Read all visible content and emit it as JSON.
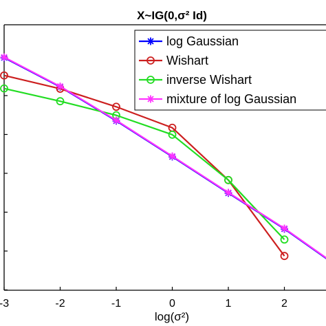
{
  "chart_data": {
    "type": "line",
    "title": "X~IG(0,σ² Id)",
    "xlabel": "log(σ²)",
    "ylabel": "",
    "xlim": [
      -3,
      3
    ],
    "ylim": [
      0,
      1
    ],
    "x_ticks": [
      "-3",
      "-2",
      "-1",
      "0",
      "1",
      "2"
    ],
    "grid": false,
    "legend_position": "top-right",
    "series": [
      {
        "name": "log Gaussian",
        "color": "#0000ff",
        "marker": "asterisk",
        "x": [
          -3,
          -2,
          -1,
          0,
          1,
          2,
          3
        ],
        "y": [
          0.876,
          0.766,
          0.638,
          0.503,
          0.366,
          0.231,
          0.082
        ]
      },
      {
        "name": "Wishart",
        "color": "#cc1f1f",
        "marker": "circle",
        "x": [
          -3,
          -2,
          -1,
          0,
          1,
          2
        ],
        "y": [
          0.809,
          0.759,
          0.691,
          0.612,
          0.415,
          0.129
        ]
      },
      {
        "name": "inverse Wishart",
        "color": "#22dd22",
        "marker": "circle",
        "x": [
          -3,
          -2,
          -1,
          0,
          1,
          2
        ],
        "y": [
          0.76,
          0.712,
          0.659,
          0.586,
          0.415,
          0.191
        ]
      },
      {
        "name": "mixture of log Gaussian",
        "color": "#ff33ff",
        "marker": "asterisk",
        "x": [
          -3,
          -2,
          -1,
          0,
          1,
          2,
          3
        ],
        "y": [
          0.878,
          0.768,
          0.64,
          0.505,
          0.368,
          0.233,
          0.084
        ]
      }
    ]
  }
}
